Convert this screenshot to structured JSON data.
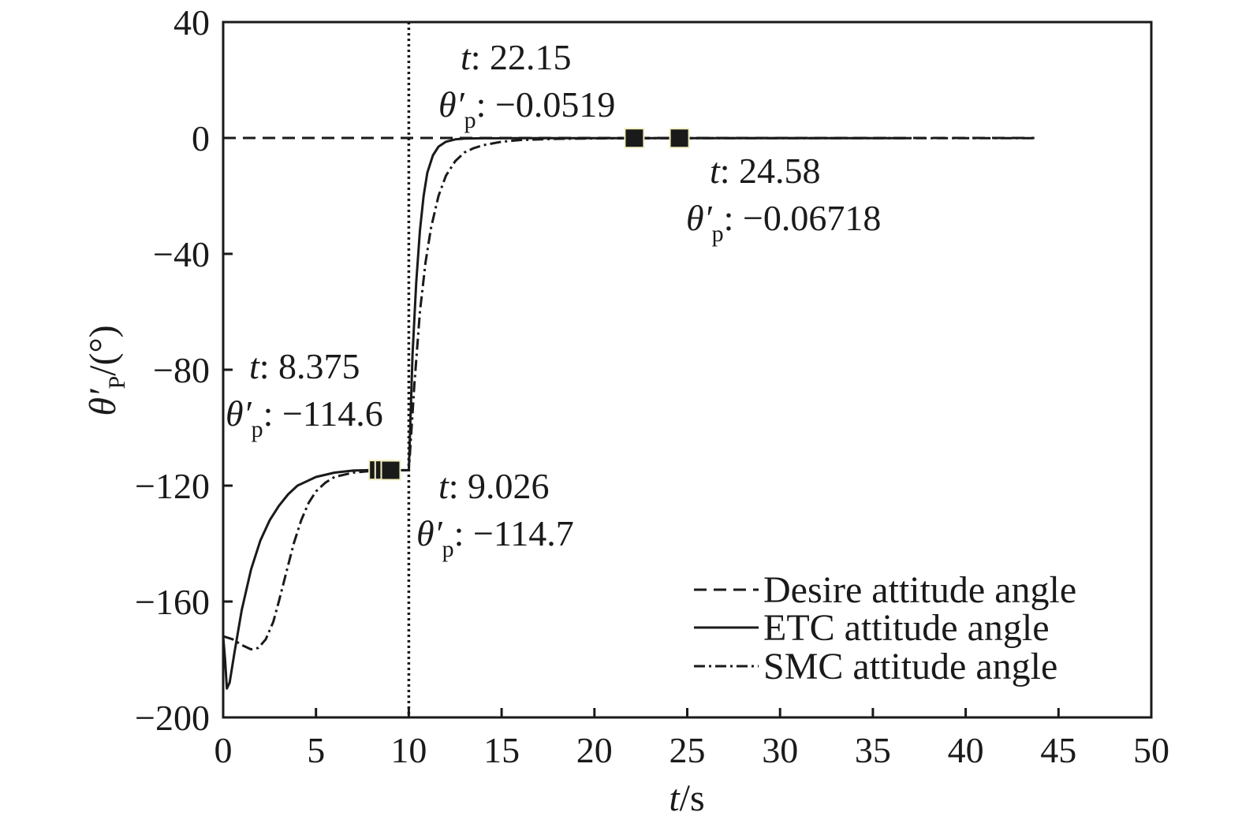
{
  "chart_data": {
    "type": "line",
    "xlabel": {
      "italic": "t",
      "rest": "/s"
    },
    "ylabel": {
      "symbol": "θ′",
      "sub": "P",
      "rest": "/(°)"
    },
    "xlim": [
      0,
      50
    ],
    "ylim": [
      -200,
      40
    ],
    "xticks": [
      0,
      5,
      10,
      15,
      20,
      25,
      30,
      35,
      40,
      45,
      50
    ],
    "yticks": [
      40,
      0,
      -40,
      -80,
      -120,
      -160,
      -200
    ],
    "xtick_labels": [
      "0",
      "5",
      "10",
      "15",
      "20",
      "25",
      "30",
      "35",
      "40",
      "45",
      "50"
    ],
    "ytick_labels": [
      "40",
      "0",
      "−40",
      "−80",
      "−120",
      "−160",
      "−200"
    ],
    "grid": false,
    "legend_position": "bottom-right",
    "vertical_marker_x": 10,
    "series": [
      {
        "name": "Desire attitude angle",
        "style": "dashed",
        "x": [
          0,
          43.7
        ],
        "y": [
          0,
          0
        ]
      },
      {
        "name": "ETC attitude angle",
        "style": "solid",
        "x": [
          0,
          0.1,
          0.2,
          0.35,
          0.6,
          1.0,
          1.5,
          2.0,
          2.5,
          3.0,
          3.5,
          4.0,
          5.0,
          6.0,
          7.0,
          8.0,
          8.375,
          9.026,
          10.0,
          10.05,
          10.2,
          10.4,
          10.6,
          10.8,
          11.0,
          11.3,
          11.6,
          12.0,
          12.5,
          13.0,
          14.0,
          16.0,
          20.0,
          22.15,
          24.58,
          30.0,
          37.0
        ],
        "y": [
          -172,
          -180,
          -190,
          -188,
          -178,
          -163,
          -149,
          -139,
          -132,
          -127,
          -123,
          -120,
          -117,
          -115.5,
          -114.8,
          -114.6,
          -114.6,
          -114.7,
          -114.7,
          -105,
          -75,
          -50,
          -32,
          -20,
          -12,
          -6,
          -3,
          -1.3,
          -0.5,
          -0.2,
          -0.1,
          -0.07,
          -0.06,
          -0.0519,
          -0.05,
          -0.05,
          -0.05
        ]
      },
      {
        "name": "SMC attitude angle",
        "style": "dashdot",
        "x": [
          0,
          0.5,
          1.0,
          1.5,
          1.9,
          2.3,
          2.7,
          3.0,
          3.4,
          3.8,
          4.2,
          4.6,
          5.0,
          5.5,
          6.0,
          7.0,
          8.0,
          9.0,
          10.0,
          10.05,
          10.3,
          10.6,
          10.9,
          11.2,
          11.6,
          12.0,
          12.5,
          13.0,
          13.5,
          14.0,
          15.0,
          16.0,
          18.0,
          20.0,
          22.0,
          24.58,
          30.0,
          43.7
        ],
        "y": [
          -172,
          -173,
          -175,
          -176.5,
          -176,
          -173,
          -167,
          -160,
          -150,
          -140,
          -132,
          -126,
          -122,
          -119,
          -117,
          -115.5,
          -114.9,
          -114.7,
          -114.6,
          -110,
          -85,
          -60,
          -43,
          -31,
          -20,
          -13,
          -8,
          -5,
          -3.5,
          -2.5,
          -1.3,
          -0.7,
          -0.3,
          -0.15,
          -0.1,
          -0.06718,
          -0.05,
          -0.05
        ]
      }
    ],
    "markers": [
      {
        "x": 8.375,
        "y": -114.6
      },
      {
        "x": 8.7,
        "y": -114.6
      },
      {
        "x": 9.026,
        "y": -114.7
      },
      {
        "x": 22.15,
        "y": -0.0519
      },
      {
        "x": 24.58,
        "y": -0.06718
      }
    ],
    "annotations": [
      {
        "t_label": "t",
        "t_value": ": 22.15",
        "theta_value": ": −0.0519"
      },
      {
        "t_label": "t",
        "t_value": ": 24.58",
        "theta_value": ": −0.06718"
      },
      {
        "t_label": "t",
        "t_value": ": 8.375",
        "theta_value": ": −114.6"
      },
      {
        "t_label": "t",
        "t_value": ": 9.026",
        "theta_value": ": −114.7"
      }
    ],
    "theta_symbol": "θ′",
    "theta_sub": "p"
  }
}
